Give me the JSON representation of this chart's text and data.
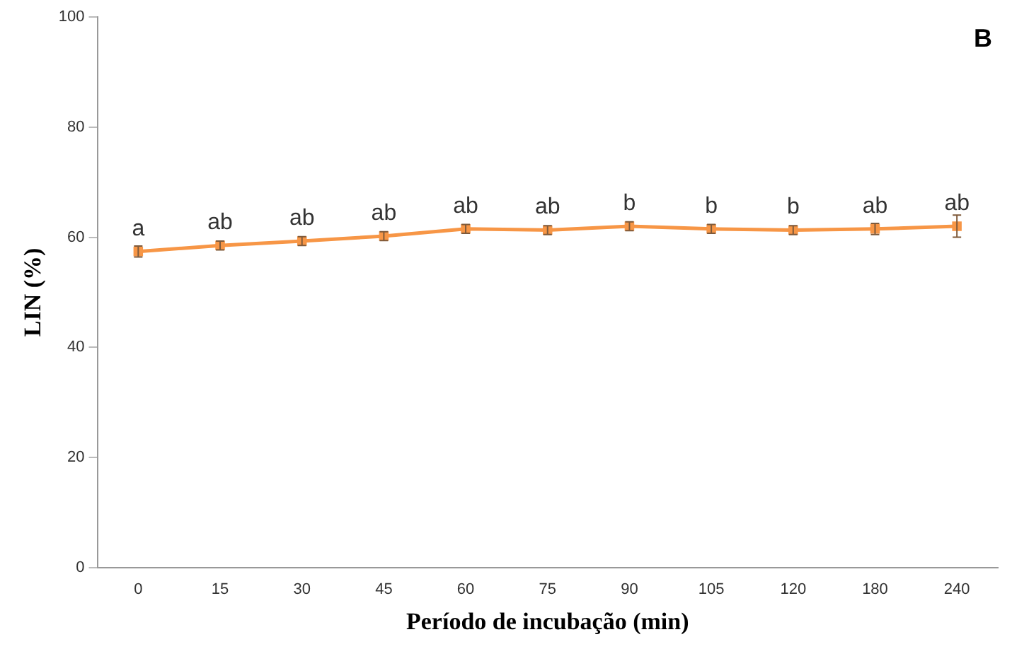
{
  "chart_data": {
    "type": "line",
    "title": "B",
    "xlabel": "Período de incubação (min)",
    "ylabel": "LIN (%)",
    "categories": [
      "0",
      "15",
      "30",
      "45",
      "60",
      "75",
      "90",
      "105",
      "120",
      "180",
      "240"
    ],
    "series": [
      {
        "color": "#f79646",
        "values": [
          57.4,
          58.5,
          59.3,
          60.2,
          61.5,
          61.3,
          62,
          61.5,
          61.3,
          61.5,
          62
        ],
        "errors": [
          1,
          0.8,
          0.8,
          0.8,
          0.8,
          0.8,
          0.8,
          0.8,
          0.8,
          1,
          2
        ]
      }
    ],
    "ylim": [
      0,
      100
    ],
    "yticks": [
      0,
      20,
      40,
      60,
      80,
      100
    ],
    "grid": false,
    "legend": false,
    "marker": "square",
    "annotations": [
      {
        "text": "a",
        "x": "0",
        "y": 57.4
      },
      {
        "text": "ab",
        "x": "15",
        "y": 58.5
      },
      {
        "text": "ab",
        "x": "30",
        "y": 59.3
      },
      {
        "text": "ab",
        "x": "45",
        "y": 60.2
      },
      {
        "text": "ab",
        "x": "60",
        "y": 61.5
      },
      {
        "text": "ab",
        "x": "75",
        "y": 61.3
      },
      {
        "text": "b",
        "x": "90",
        "y": 62
      },
      {
        "text": "b",
        "x": "105",
        "y": 61.5
      },
      {
        "text": "b",
        "x": "120",
        "y": 61.3
      },
      {
        "text": "ab",
        "x": "180",
        "y": 61.5
      },
      {
        "text": "ab",
        "x": "240",
        "y": 62
      }
    ]
  }
}
